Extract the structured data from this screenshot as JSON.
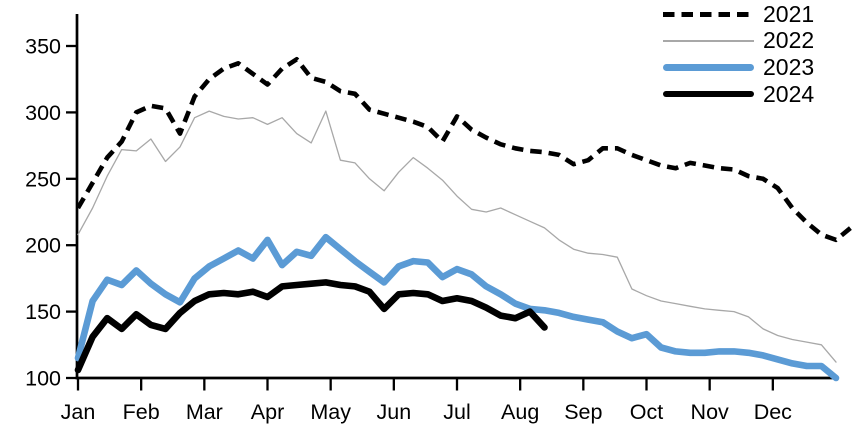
{
  "chart_data": {
    "type": "line",
    "title": "",
    "x_unit": "weekly, Jan through Dec",
    "x_tick_labels": [
      "Jan",
      "Feb",
      "Mar",
      "Apr",
      "May",
      "Jun",
      "Jul",
      "Aug",
      "Sep",
      "Oct",
      "Nov",
      "Dec"
    ],
    "y_tick_labels": [
      "100",
      "150",
      "200",
      "250",
      "300",
      "350"
    ],
    "y_axis": {
      "min": 100,
      "max": 350,
      "tick_interval": 50
    },
    "grid": false,
    "legend": {
      "position": "top-right",
      "entries": [
        "2021",
        "2022",
        "2023",
        "2024"
      ]
    },
    "series": [
      {
        "name": "2021",
        "color": "#000000",
        "line_style": "dashed",
        "line_width": 4.6,
        "values": [
          228,
          247,
          266,
          278,
          300,
          305,
          303,
          284,
          312,
          325,
          333,
          337,
          329,
          321,
          333,
          340,
          326,
          323,
          316,
          314,
          302,
          299,
          296,
          293,
          289,
          278,
          297,
          287,
          281,
          276,
          273,
          271,
          270,
          268,
          261,
          264,
          273,
          273,
          268,
          264,
          260,
          258,
          262,
          260,
          258,
          257,
          252,
          250,
          243,
          228,
          217,
          208,
          204,
          213
        ]
      },
      {
        "name": "2022",
        "color": "#A8A8A8",
        "line_style": "solid",
        "line_width": 1.3,
        "values": [
          208,
          228,
          252,
          272,
          271,
          280,
          263,
          274,
          296,
          301,
          297,
          295,
          296,
          291,
          296,
          284,
          277,
          301,
          264,
          262,
          250,
          241,
          255,
          266,
          258,
          249,
          237,
          227,
          225,
          228,
          223,
          218,
          213,
          204,
          197,
          194,
          193,
          191,
          167,
          162,
          158,
          156,
          154,
          152,
          151,
          150,
          146,
          137,
          132,
          129,
          127,
          125,
          112
        ]
      },
      {
        "name": "2023",
        "color": "#5B9BD5",
        "line_style": "solid",
        "line_width": 6.6,
        "values": [
          115,
          158,
          174,
          170,
          181,
          171,
          163,
          157,
          175,
          184,
          190,
          196,
          190,
          204,
          185,
          195,
          192,
          206,
          197,
          188,
          180,
          172,
          184,
          188,
          187,
          176,
          182,
          178,
          169,
          163,
          156,
          152,
          151,
          149,
          146,
          144,
          142,
          135,
          130,
          133,
          123,
          120,
          119,
          119,
          120,
          120,
          119,
          117,
          114,
          111,
          109,
          109,
          100
        ]
      },
      {
        "name": "2024",
        "color": "#000000",
        "line_style": "solid",
        "line_width": 6.6,
        "values": [
          106,
          131,
          145,
          137,
          148,
          140,
          137,
          149,
          158,
          163,
          164,
          163,
          165,
          161,
          169,
          170,
          171,
          172,
          170,
          169,
          165,
          152,
          163,
          164,
          163,
          158,
          160,
          158,
          153,
          147,
          145,
          150,
          138
        ]
      }
    ]
  }
}
